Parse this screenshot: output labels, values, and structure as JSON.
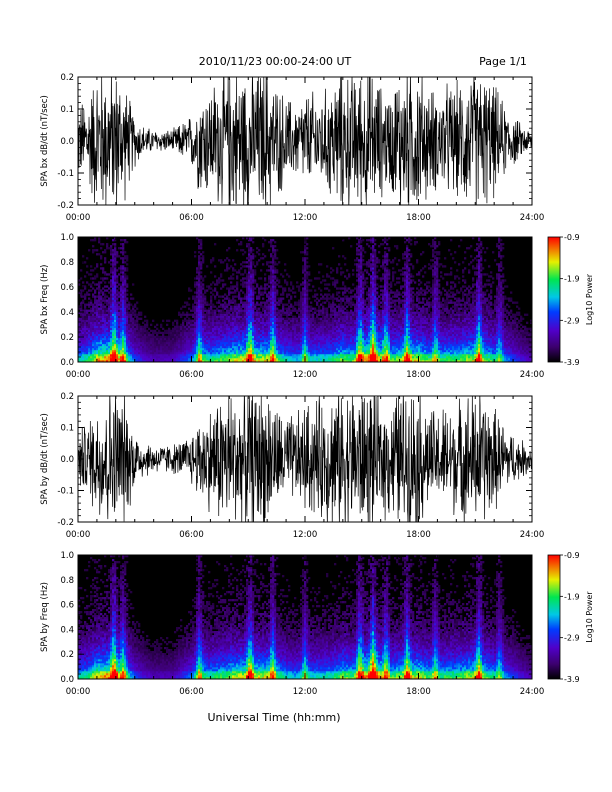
{
  "header": {
    "title": "2010/11/23  00:00-24:00 UT",
    "page": "Page 1/1"
  },
  "footer": {
    "xlabel": "Universal Time (hh:mm)"
  },
  "chart_data": [
    {
      "type": "line",
      "ylabel": "SPA bx dB/dt (nT/sec)",
      "ylim": [
        -0.2,
        0.2
      ],
      "yticks": [
        "-0.2",
        "-0.1",
        "0.0",
        "0.1",
        "0.2"
      ],
      "xticks": [
        "00:00",
        "06:00",
        "12:00",
        "18:00",
        "24:00"
      ],
      "xlim": [
        0,
        24
      ],
      "series": [
        {
          "x": [
            0,
            0.5,
            1,
            1.5,
            2,
            2.5,
            3,
            3.5,
            4,
            4.5,
            5,
            5.5,
            6,
            6.5,
            7,
            7.5,
            8,
            8.5,
            9,
            9.5,
            10,
            10.5,
            11,
            11.5,
            12,
            12.5,
            13,
            13.5,
            14,
            14.5,
            15,
            15.5,
            16,
            16.5,
            17,
            17.5,
            18,
            18.5,
            19,
            19.5,
            20,
            20.5,
            21,
            21.5,
            22,
            22.5,
            23,
            23.5,
            24
          ],
          "amplitude": [
            0.1,
            0.12,
            0.2,
            0.2,
            0.2,
            0.15,
            0.07,
            0.04,
            0.03,
            0.03,
            0.03,
            0.05,
            0.07,
            0.15,
            0.15,
            0.18,
            0.2,
            0.2,
            0.2,
            0.2,
            0.2,
            0.15,
            0.12,
            0.1,
            0.13,
            0.13,
            0.13,
            0.17,
            0.2,
            0.18,
            0.2,
            0.2,
            0.15,
            0.13,
            0.2,
            0.2,
            0.2,
            0.15,
            0.13,
            0.15,
            0.15,
            0.18,
            0.2,
            0.18,
            0.15,
            0.1,
            0.07,
            0.04,
            0.03
          ]
        }
      ]
    },
    {
      "type": "heatmap",
      "ylabel": "SPA bx Freq (Hz)",
      "ylim": [
        0.0,
        1.0
      ],
      "yticks": [
        "0.0",
        "0.2",
        "0.4",
        "0.6",
        "0.8",
        "1.0"
      ],
      "xticks": [
        "00:00",
        "06:00",
        "12:00",
        "18:00",
        "24:00"
      ],
      "xlim": [
        0,
        24
      ],
      "colorbar": {
        "label": "Log10 Power",
        "ticks": [
          "-0.9",
          "-1.9",
          "-2.9",
          "-3.9"
        ],
        "range": [
          -3.9,
          -0.9
        ]
      },
      "bursts_hr": [
        1.9,
        2.4,
        6.4,
        9.1,
        10.3,
        12.0,
        14.9,
        15.6,
        16.3,
        17.4,
        18.9,
        21.2,
        22.3
      ],
      "activity": [
        0.5,
        0.55,
        0.75,
        0.8,
        0.8,
        0.6,
        0.35,
        0.25,
        0.2,
        0.2,
        0.2,
        0.3,
        0.4,
        0.6,
        0.55,
        0.6,
        0.65,
        0.7,
        0.75,
        0.7,
        0.7,
        0.6,
        0.5,
        0.45,
        0.5,
        0.5,
        0.5,
        0.55,
        0.65,
        0.6,
        0.75,
        0.85,
        0.75,
        0.6,
        0.65,
        0.7,
        0.7,
        0.6,
        0.55,
        0.6,
        0.6,
        0.65,
        0.7,
        0.65,
        0.55,
        0.45,
        0.35,
        0.25,
        0.2
      ]
    },
    {
      "type": "line",
      "ylabel": "SPA by dB/dt (nT/sec)",
      "ylim": [
        -0.2,
        0.2
      ],
      "yticks": [
        "-0.2",
        "-0.1",
        "0.0",
        "0.1",
        "0.2"
      ],
      "xticks": [
        "00:00",
        "06:00",
        "12:00",
        "18:00",
        "24:00"
      ],
      "xlim": [
        0,
        24
      ],
      "series": [
        {
          "x": [
            0,
            0.5,
            1,
            1.5,
            2,
            2.5,
            3,
            3.5,
            4,
            4.5,
            5,
            5.5,
            6,
            6.5,
            7,
            7.5,
            8,
            8.5,
            9,
            9.5,
            10,
            10.5,
            11,
            11.5,
            12,
            12.5,
            13,
            13.5,
            14,
            14.5,
            15,
            15.5,
            16,
            16.5,
            17,
            17.5,
            18,
            18.5,
            19,
            19.5,
            20,
            20.5,
            21,
            21.5,
            22,
            22.5,
            23,
            23.5,
            24
          ],
          "amplitude": [
            0.08,
            0.1,
            0.16,
            0.2,
            0.2,
            0.17,
            0.08,
            0.05,
            0.04,
            0.04,
            0.04,
            0.05,
            0.07,
            0.12,
            0.14,
            0.18,
            0.2,
            0.18,
            0.2,
            0.2,
            0.2,
            0.14,
            0.12,
            0.12,
            0.15,
            0.16,
            0.17,
            0.2,
            0.2,
            0.2,
            0.2,
            0.2,
            0.16,
            0.16,
            0.2,
            0.2,
            0.2,
            0.14,
            0.13,
            0.15,
            0.15,
            0.18,
            0.2,
            0.18,
            0.14,
            0.1,
            0.07,
            0.05,
            0.04
          ]
        }
      ]
    },
    {
      "type": "heatmap",
      "ylabel": "SPA by Freq (Hz)",
      "ylim": [
        0.0,
        1.0
      ],
      "yticks": [
        "0.0",
        "0.2",
        "0.4",
        "0.6",
        "0.8",
        "1.0"
      ],
      "xticks": [
        "00:00",
        "06:00",
        "12:00",
        "18:00",
        "24:00"
      ],
      "xlim": [
        0,
        24
      ],
      "colorbar": {
        "label": "Log10 Power",
        "ticks": [
          "-0.9",
          "-1.9",
          "-2.9",
          "-3.9"
        ],
        "range": [
          -3.9,
          -0.9
        ]
      },
      "bursts_hr": [
        1.9,
        2.4,
        6.4,
        9.1,
        10.3,
        12.0,
        14.9,
        15.6,
        16.3,
        17.4,
        18.9,
        21.2,
        22.3
      ],
      "activity": [
        0.5,
        0.55,
        0.75,
        0.8,
        0.8,
        0.6,
        0.35,
        0.25,
        0.2,
        0.2,
        0.2,
        0.3,
        0.4,
        0.6,
        0.55,
        0.6,
        0.65,
        0.7,
        0.75,
        0.7,
        0.7,
        0.6,
        0.5,
        0.45,
        0.5,
        0.5,
        0.5,
        0.55,
        0.65,
        0.6,
        0.75,
        0.85,
        0.75,
        0.6,
        0.65,
        0.7,
        0.7,
        0.6,
        0.55,
        0.6,
        0.6,
        0.65,
        0.7,
        0.65,
        0.55,
        0.45,
        0.35,
        0.25,
        0.2
      ]
    }
  ]
}
